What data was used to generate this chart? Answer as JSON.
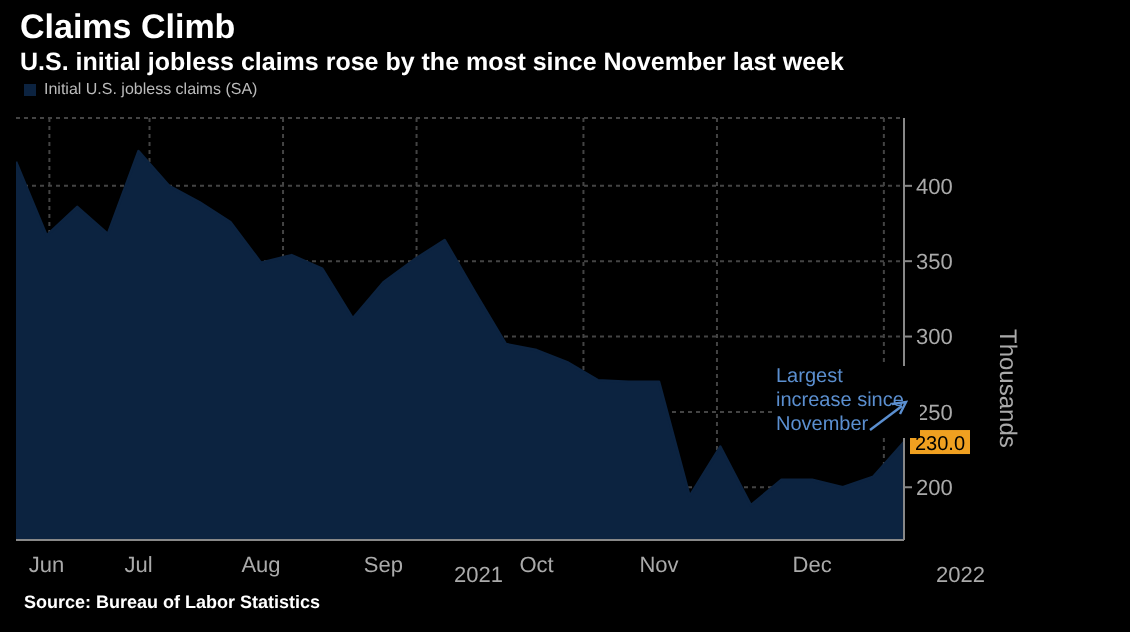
{
  "chart_data": {
    "type": "area",
    "title": "Claims Climb",
    "subtitle": "U.S. initial jobless claims rose by the most since November last week",
    "ylabel": "Thousands",
    "categories": [
      null,
      "Jun",
      null,
      null,
      "Jul",
      null,
      null,
      null,
      "Aug",
      null,
      null,
      null,
      "Sep",
      null,
      null,
      null,
      null,
      "Oct",
      null,
      null,
      null,
      "Nov",
      null,
      null,
      null,
      null,
      "Dec",
      null,
      null,
      null
    ],
    "series": [
      {
        "name": "Initial U.S. jobless claims (SA)",
        "color": "#0c2340",
        "values": [
          416,
          367,
          386,
          368,
          423,
          400,
          389,
          376,
          349,
          354,
          345,
          312,
          336,
          351,
          364,
          329,
          295,
          291,
          283,
          271,
          270,
          270,
          194,
          227,
          188,
          205,
          205,
          200,
          207,
          230
        ],
        "value_labels": [
          null,
          null,
          null,
          null,
          null,
          null,
          null,
          null,
          null,
          null,
          null,
          null,
          null,
          null,
          null,
          null,
          null,
          null,
          null,
          null,
          null,
          null,
          null,
          null,
          null,
          null,
          null,
          null,
          null,
          "230.0"
        ]
      }
    ],
    "ylim": [
      165,
      445
    ],
    "yticks": [
      200,
      250,
      300,
      350,
      400
    ],
    "grid": true,
    "legend": "top left",
    "annotations": [
      "Largest increase since November",
      "2021",
      "2022",
      "Source: Bureau of Labor Statistics"
    ]
  }
}
